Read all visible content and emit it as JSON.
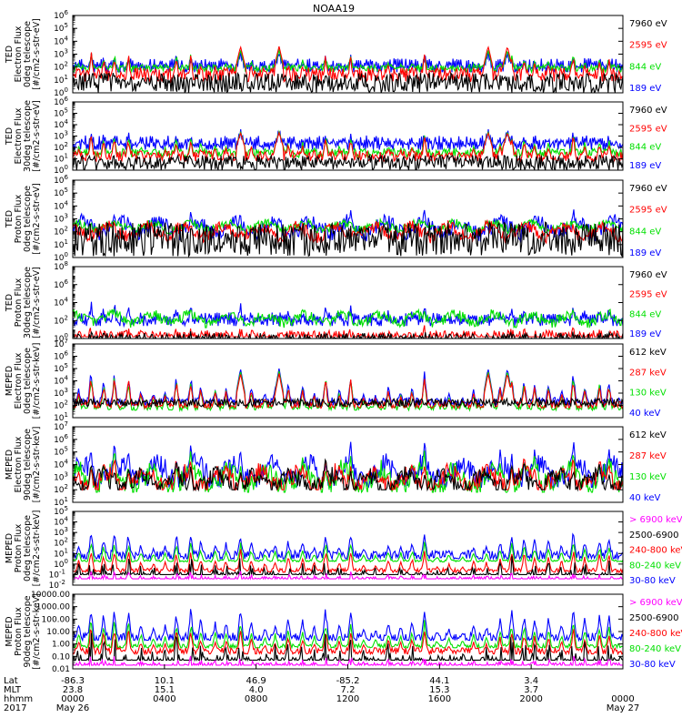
{
  "title": "NOAA19",
  "chart_data": {
    "type": "line",
    "colors": {
      "blue": "#0000ff",
      "green": "#00e000",
      "red": "#ff0000",
      "black": "#000000",
      "magenta": "#ff00ff"
    },
    "panels": [
      {
        "ylabel": [
          "TED",
          "Electron Flux",
          "0deg telescope",
          "[#/cm2-s-str-eV]"
        ],
        "yrange_log": [
          0,
          6
        ],
        "ticks": [
          {
            "label": "10",
            "exp": "0",
            "at": 0
          },
          {
            "label": "10",
            "exp": "1",
            "at": 1
          },
          {
            "label": "10",
            "exp": "2",
            "at": 2
          },
          {
            "label": "10",
            "exp": "3",
            "at": 3
          },
          {
            "label": "10",
            "exp": "4",
            "at": 4
          },
          {
            "label": "10",
            "exp": "5",
            "at": 5
          },
          {
            "label": "10",
            "exp": "6",
            "at": 6
          }
        ],
        "legend": [
          {
            "text": "7960 eV",
            "color": "black"
          },
          {
            "text": "2595 eV",
            "color": "red"
          },
          {
            "text": "844 eV",
            "color": "green"
          },
          {
            "text": "189 eV",
            "color": "blue"
          }
        ],
        "series": [
          {
            "name": "189 eV",
            "color": "blue",
            "base": 2.0,
            "spread": 0.45,
            "peak": 3.1,
            "floor": 1.6,
            "mode": "band"
          },
          {
            "name": "844 eV",
            "color": "green",
            "base": 1.9,
            "spread": 0.3,
            "peak": 3.3,
            "floor": 1.5,
            "mode": "spiky"
          },
          {
            "name": "2595 eV",
            "color": "red",
            "base": 1.4,
            "spread": 0.55,
            "peak": 3.6,
            "floor": 0.6,
            "mode": "spiky"
          },
          {
            "name": "7960 eV",
            "color": "black",
            "base": 0.7,
            "spread": 0.6,
            "peak": 2.9,
            "floor": 0.0,
            "mode": "noisy"
          }
        ]
      },
      {
        "ylabel": [
          "TED",
          "Electron Flux",
          "30deg telescope",
          "[#/cm2-s-str-eV]"
        ],
        "yrange_log": [
          0,
          6
        ],
        "ticks": [
          {
            "label": "10",
            "exp": "0",
            "at": 0
          },
          {
            "label": "10",
            "exp": "1",
            "at": 1
          },
          {
            "label": "10",
            "exp": "2",
            "at": 2
          },
          {
            "label": "10",
            "exp": "3",
            "at": 3
          },
          {
            "label": "10",
            "exp": "4",
            "at": 4
          },
          {
            "label": "10",
            "exp": "5",
            "at": 5
          },
          {
            "label": "10",
            "exp": "6",
            "at": 6
          }
        ],
        "legend": [
          {
            "text": "7960 eV",
            "color": "black"
          },
          {
            "text": "2595 eV",
            "color": "red"
          },
          {
            "text": "844 eV",
            "color": "green"
          },
          {
            "text": "189 eV",
            "color": "blue"
          }
        ],
        "series": [
          {
            "name": "189 eV",
            "color": "blue",
            "base": 2.3,
            "spread": 0.5,
            "peak": 3.4,
            "floor": 1.8,
            "mode": "band"
          },
          {
            "name": "844 eV",
            "color": "green",
            "base": 1.5,
            "spread": 0.4,
            "peak": 3.4,
            "floor": 1.1,
            "mode": "spiky"
          },
          {
            "name": "2595 eV",
            "color": "red",
            "base": 1.2,
            "spread": 0.5,
            "peak": 3.3,
            "floor": 0.8,
            "mode": "spiky"
          },
          {
            "name": "7960 eV",
            "color": "black",
            "base": 0.6,
            "spread": 0.5,
            "peak": 2.7,
            "floor": 0.0,
            "mode": "noisy"
          }
        ]
      },
      {
        "ylabel": [
          "TED",
          "Proton Flux",
          "0deg telescope",
          "[#/cm2-s-str-eV]"
        ],
        "yrange_log": [
          0,
          6
        ],
        "ticks": [
          {
            "label": "10",
            "exp": "0",
            "at": 0
          },
          {
            "label": "10",
            "exp": "1",
            "at": 1
          },
          {
            "label": "10",
            "exp": "2",
            "at": 2
          },
          {
            "label": "10",
            "exp": "3",
            "at": 3
          },
          {
            "label": "10",
            "exp": "4",
            "at": 4
          },
          {
            "label": "10",
            "exp": "5",
            "at": 5
          },
          {
            "label": "10",
            "exp": "6",
            "at": 6
          }
        ],
        "legend": [
          {
            "text": "7960 eV",
            "color": "black"
          },
          {
            "text": "2595 eV",
            "color": "red"
          },
          {
            "text": "844 eV",
            "color": "green"
          },
          {
            "text": "189 eV",
            "color": "blue"
          }
        ],
        "series": [
          {
            "name": "189 eV",
            "color": "blue",
            "base": 2.3,
            "spread": 0.6,
            "peak": 3.8,
            "floor": 1.2,
            "mode": "wave"
          },
          {
            "name": "844 eV",
            "color": "green",
            "base": 2.4,
            "spread": 0.35,
            "peak": 3.0,
            "floor": 1.8,
            "mode": "wave"
          },
          {
            "name": "2595 eV",
            "color": "red",
            "base": 2.0,
            "spread": 0.5,
            "peak": 3.0,
            "floor": 1.0,
            "mode": "wave"
          },
          {
            "name": "7960 eV",
            "color": "black",
            "base": 1.3,
            "spread": 0.7,
            "peak": 2.6,
            "floor": 0.1,
            "mode": "noisy"
          }
        ]
      },
      {
        "ylabel": [
          "TED",
          "Proton Flux",
          "30deg telescope",
          "[#/cm2-s-str-eV]"
        ],
        "yrange_log": [
          0,
          8
        ],
        "ticks": [
          {
            "label": "10",
            "exp": "0",
            "at": 0
          },
          {
            "label": "10",
            "exp": "2",
            "at": 2
          },
          {
            "label": "10",
            "exp": "4",
            "at": 4
          },
          {
            "label": "10",
            "exp": "6",
            "at": 6
          },
          {
            "label": "10",
            "exp": "8",
            "at": 8
          }
        ],
        "legend": [
          {
            "text": "7960 eV",
            "color": "black"
          },
          {
            "text": "2595 eV",
            "color": "red"
          },
          {
            "text": "844 eV",
            "color": "green"
          },
          {
            "text": "189 eV",
            "color": "blue"
          }
        ],
        "series": [
          {
            "name": "189 eV",
            "color": "blue",
            "base": 2.0,
            "spread": 0.6,
            "peak": 4.2,
            "floor": 1.4,
            "mode": "band"
          },
          {
            "name": "844 eV",
            "color": "green",
            "base": 2.2,
            "spread": 0.6,
            "peak": 3.2,
            "floor": 1.2,
            "mode": "wave"
          },
          {
            "name": "2595 eV",
            "color": "red",
            "base": 0.6,
            "spread": 0.3,
            "peak": 1.6,
            "floor": 0.2,
            "mode": "sparse"
          },
          {
            "name": "7960 eV",
            "color": "black",
            "base": 0.3,
            "spread": 0.3,
            "peak": 1.0,
            "floor": 0.0,
            "mode": "sparse"
          }
        ]
      },
      {
        "ylabel": [
          "MEPED",
          "Electron Flux",
          "0deg telescope",
          "[#/cm2-s-str-keV]"
        ],
        "yrange_log": [
          1,
          7
        ],
        "ticks": [
          {
            "label": "10",
            "exp": "1",
            "at": 1
          },
          {
            "label": "10",
            "exp": "2",
            "at": 2
          },
          {
            "label": "10",
            "exp": "3",
            "at": 3
          },
          {
            "label": "10",
            "exp": "4",
            "at": 4
          },
          {
            "label": "10",
            "exp": "5",
            "at": 5
          },
          {
            "label": "10",
            "exp": "6",
            "at": 6
          },
          {
            "label": "10",
            "exp": "7",
            "at": 7
          }
        ],
        "legend": [
          {
            "text": "612 keV",
            "color": "black"
          },
          {
            "text": "287 keV",
            "color": "red"
          },
          {
            "text": "130 keV",
            "color": "green"
          },
          {
            "text": "40 keV",
            "color": "blue"
          }
        ],
        "series": [
          {
            "name": "40 keV",
            "color": "blue",
            "base": 2.3,
            "spread": 0.35,
            "peak": 5.0,
            "floor": 2.0,
            "mode": "spiky"
          },
          {
            "name": "130 keV",
            "color": "green",
            "base": 1.8,
            "spread": 0.2,
            "peak": 4.8,
            "floor": 1.6,
            "mode": "spiky"
          },
          {
            "name": "287 keV",
            "color": "red",
            "base": 2.0,
            "spread": 0.3,
            "peak": 4.6,
            "floor": 1.8,
            "mode": "spiky"
          },
          {
            "name": "612 keV",
            "color": "black",
            "base": 2.2,
            "spread": 0.35,
            "peak": 4.2,
            "floor": 1.9,
            "mode": "noisy"
          }
        ]
      },
      {
        "ylabel": [
          "MEPED",
          "Electron Flux",
          "90deg telescope",
          "[#/cm2-s-str-keV]"
        ],
        "yrange_log": [
          1,
          7
        ],
        "ticks": [
          {
            "label": "10",
            "exp": "1",
            "at": 1
          },
          {
            "label": "10",
            "exp": "2",
            "at": 2
          },
          {
            "label": "10",
            "exp": "3",
            "at": 3
          },
          {
            "label": "10",
            "exp": "4",
            "at": 4
          },
          {
            "label": "10",
            "exp": "5",
            "at": 5
          },
          {
            "label": "10",
            "exp": "6",
            "at": 6
          },
          {
            "label": "10",
            "exp": "7",
            "at": 7
          }
        ],
        "legend": [
          {
            "text": "612 keV",
            "color": "black"
          },
          {
            "text": "287 keV",
            "color": "red"
          },
          {
            "text": "130 keV",
            "color": "green"
          },
          {
            "text": "40 keV",
            "color": "blue"
          }
        ],
        "series": [
          {
            "name": "40 keV",
            "color": "blue",
            "base": 3.3,
            "spread": 0.9,
            "peak": 6.0,
            "floor": 2.2,
            "mode": "wave"
          },
          {
            "name": "130 keV",
            "color": "green",
            "base": 2.8,
            "spread": 0.9,
            "peak": 5.4,
            "floor": 1.8,
            "mode": "wave"
          },
          {
            "name": "287 keV",
            "color": "red",
            "base": 2.7,
            "spread": 0.8,
            "peak": 5.0,
            "floor": 2.0,
            "mode": "wave"
          },
          {
            "name": "612 keV",
            "color": "black",
            "base": 2.6,
            "spread": 0.7,
            "peak": 4.6,
            "floor": 2.0,
            "mode": "wave"
          }
        ]
      },
      {
        "ylabel": [
          "MEPED",
          "Proton Flux",
          "0deg telescope",
          "[#/cm2-s-str-keV]"
        ],
        "yrange_log": [
          -2,
          5
        ],
        "ticks": [
          {
            "label": "10",
            "exp": "-2",
            "at": -2
          },
          {
            "label": "10",
            "exp": "-1",
            "at": -1
          },
          {
            "label": "10",
            "exp": "0",
            "at": 0
          },
          {
            "label": "10",
            "exp": "1",
            "at": 1
          },
          {
            "label": "10",
            "exp": "2",
            "at": 2
          },
          {
            "label": "10",
            "exp": "3",
            "at": 3
          },
          {
            "label": "10",
            "exp": "4",
            "at": 4
          },
          {
            "label": "10",
            "exp": "5",
            "at": 5
          }
        ],
        "legend": [
          {
            "text": "> 6900 keV",
            "color": "magenta"
          },
          {
            "text": "2500-6900",
            "color": "black"
          },
          {
            "text": "240-800 keV",
            "color": "red"
          },
          {
            "text": "80-240 keV",
            "color": "green"
          },
          {
            "text": "30-80 keV",
            "color": "blue"
          }
        ],
        "series": [
          {
            "name": "30-80 keV",
            "color": "blue",
            "base": 0.8,
            "spread": 0.5,
            "peak": 3.6,
            "floor": 0.5,
            "mode": "spiky"
          },
          {
            "name": "80-240 keV",
            "color": "green",
            "base": 0.3,
            "spread": 0.1,
            "peak": 2.4,
            "floor": 0.2,
            "mode": "spiky"
          },
          {
            "name": "240-800 keV",
            "color": "red",
            "base": -0.6,
            "spread": 0.2,
            "peak": 1.8,
            "floor": -0.8,
            "mode": "spiky"
          },
          {
            "name": "2500-6900",
            "color": "black",
            "base": -0.9,
            "spread": 0.1,
            "peak": 1.3,
            "floor": -1.0,
            "mode": "sparse"
          },
          {
            "name": "> 6900 keV",
            "color": "magenta",
            "base": -1.3,
            "spread": 0.1,
            "peak": -0.6,
            "floor": -1.4,
            "mode": "sparse"
          }
        ]
      },
      {
        "ylabel": [
          "MEPED",
          "Proton Flux",
          "90deg telescope",
          "[#/cm2-s-str-keV]"
        ],
        "yrange_log": [
          -2,
          4
        ],
        "ticks": [
          {
            "label": "0.01",
            "at": -2
          },
          {
            "label": "0.10",
            "at": -1
          },
          {
            "label": "1.00",
            "at": 0
          },
          {
            "label": "10.00",
            "at": 1
          },
          {
            "label": "100.00",
            "at": 2
          },
          {
            "label": "1000.00",
            "at": 3
          },
          {
            "label": "10000.00",
            "at": 4
          }
        ],
        "legend": [
          {
            "text": "> 6900 keV",
            "color": "magenta"
          },
          {
            "text": "2500-6900",
            "color": "black"
          },
          {
            "text": "240-800 keV",
            "color": "red"
          },
          {
            "text": "80-240 keV",
            "color": "green"
          },
          {
            "text": "30-80 keV",
            "color": "blue"
          }
        ],
        "series": [
          {
            "name": "30-80 keV",
            "color": "blue",
            "base": 0.4,
            "spread": 0.5,
            "peak": 3.4,
            "floor": 0.3,
            "mode": "spiky"
          },
          {
            "name": "80-240 keV",
            "color": "green",
            "base": -0.2,
            "spread": 0.2,
            "peak": 2.2,
            "floor": -0.3,
            "mode": "spiky"
          },
          {
            "name": "240-800 keV",
            "color": "red",
            "base": -0.6,
            "spread": 0.3,
            "peak": 1.6,
            "floor": -0.8,
            "mode": "spiky"
          },
          {
            "name": "2500-6900",
            "color": "black",
            "base": -1.2,
            "spread": 0.2,
            "peak": 1.4,
            "floor": -1.3,
            "mode": "sparse"
          },
          {
            "name": "> 6900 keV",
            "color": "magenta",
            "base": -1.6,
            "spread": 0.1,
            "peak": -0.8,
            "floor": -1.7,
            "mode": "sparse"
          }
        ]
      }
    ],
    "xaxis": {
      "row_labels": [
        "Lat",
        "MLT",
        "hhmm",
        "2017"
      ],
      "ticks": [
        {
          "frac": 0.0,
          "lat": "-86.3",
          "mlt": "23.8",
          "hhmm": "0000",
          "date": "May 26"
        },
        {
          "frac": 0.1667,
          "lat": "10.1",
          "mlt": "15.1",
          "hhmm": "0400",
          "date": ""
        },
        {
          "frac": 0.3333,
          "lat": "46.9",
          "mlt": "4.0",
          "hhmm": "0800",
          "date": ""
        },
        {
          "frac": 0.5,
          "lat": "-85.2",
          "mlt": "7.2",
          "hhmm": "1200",
          "date": ""
        },
        {
          "frac": 0.6667,
          "lat": "44.1",
          "mlt": "15.3",
          "hhmm": "1600",
          "date": ""
        },
        {
          "frac": 0.8333,
          "lat": "3.4",
          "mlt": "3.7",
          "hhmm": "2000",
          "date": ""
        },
        {
          "frac": 1.0,
          "lat": "",
          "mlt": "",
          "hhmm": "0000",
          "date": "May 27"
        }
      ]
    }
  }
}
